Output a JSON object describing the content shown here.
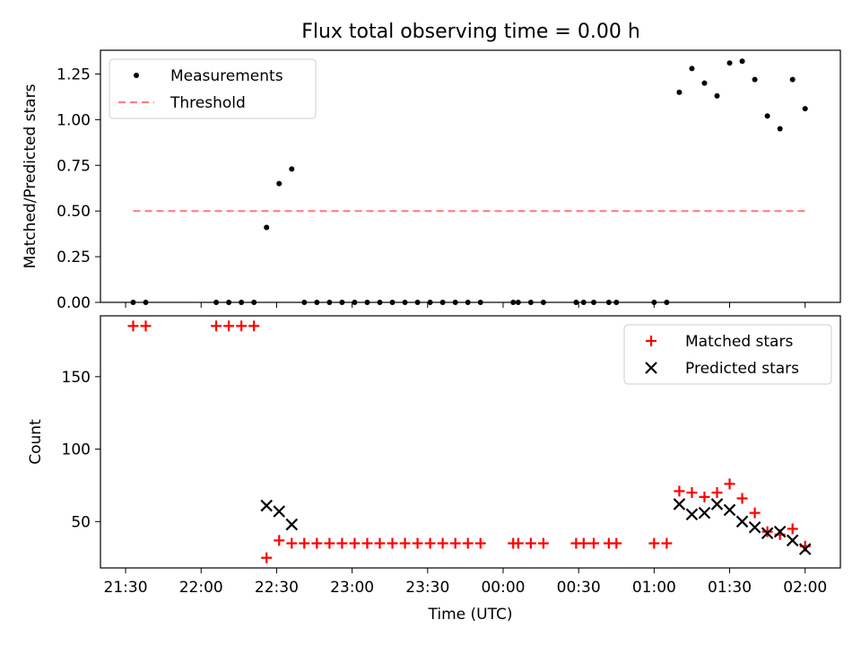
{
  "figure": {
    "title": "Flux total observing time = 0.00 h"
  },
  "chart_data": [
    {
      "type": "scatter",
      "panel": "top",
      "ylabel": "Matched/Predicted stars",
      "xlabel": "",
      "ylim": [
        0,
        1.38
      ],
      "xlim": [
        "21:20",
        "02:14"
      ],
      "grid": false,
      "legend_position": "top-left",
      "y_ticks": [
        "0.00",
        "0.25",
        "0.50",
        "0.75",
        "1.00",
        "1.25"
      ],
      "series": [
        {
          "name": "Measurements",
          "kind": "dot",
          "color": "#000000",
          "points": [
            [
              "21:33",
              0
            ],
            [
              "21:38",
              0
            ],
            [
              "22:06",
              0
            ],
            [
              "22:11",
              0
            ],
            [
              "22:16",
              0
            ],
            [
              "22:21",
              0
            ],
            [
              "22:26",
              0.41
            ],
            [
              "22:31",
              0.65
            ],
            [
              "22:36",
              0.73
            ],
            [
              "22:41",
              0
            ],
            [
              "22:46",
              0
            ],
            [
              "22:51",
              0
            ],
            [
              "22:56",
              0
            ],
            [
              "23:01",
              0
            ],
            [
              "23:06",
              0
            ],
            [
              "23:11",
              0
            ],
            [
              "23:16",
              0
            ],
            [
              "23:21",
              0
            ],
            [
              "23:26",
              0
            ],
            [
              "23:31",
              0
            ],
            [
              "23:36",
              0
            ],
            [
              "23:41",
              0
            ],
            [
              "23:46",
              0
            ],
            [
              "23:51",
              0
            ],
            [
              "00:04",
              0
            ],
            [
              "00:06",
              0
            ],
            [
              "00:11",
              0
            ],
            [
              "00:16",
              0
            ],
            [
              "00:29",
              0
            ],
            [
              "00:32",
              0
            ],
            [
              "00:36",
              0
            ],
            [
              "00:42",
              0
            ],
            [
              "00:45",
              0
            ],
            [
              "01:00",
              0
            ],
            [
              "01:05",
              0
            ],
            [
              "01:10",
              1.15
            ],
            [
              "01:15",
              1.28
            ],
            [
              "01:20",
              1.2
            ],
            [
              "01:25",
              1.13
            ],
            [
              "01:30",
              1.31
            ],
            [
              "01:35",
              1.32
            ],
            [
              "01:40",
              1.22
            ],
            [
              "01:45",
              1.02
            ],
            [
              "01:50",
              0.95
            ],
            [
              "01:55",
              1.22
            ],
            [
              "02:00",
              1.06
            ]
          ]
        },
        {
          "name": "Threshold",
          "kind": "dashed-line",
          "color": "#ff8080",
          "points": [
            [
              "21:33",
              0.5
            ],
            [
              "02:01",
              0.5
            ]
          ]
        }
      ]
    },
    {
      "type": "scatter",
      "panel": "bottom",
      "ylabel": "Count",
      "xlabel": "Time (UTC)",
      "ylim": [
        18,
        192
      ],
      "xlim": [
        "21:20",
        "02:14"
      ],
      "grid": false,
      "legend_position": "top-right",
      "x_ticks": [
        "21:30",
        "22:00",
        "22:30",
        "23:00",
        "23:30",
        "00:00",
        "00:30",
        "01:00",
        "01:30",
        "02:00"
      ],
      "y_ticks": [
        "50",
        "100",
        "150"
      ],
      "series": [
        {
          "name": "Matched stars",
          "kind": "plus",
          "color": "#ff0000",
          "points": [
            [
              "21:33",
              185
            ],
            [
              "21:38",
              185
            ],
            [
              "22:06",
              185
            ],
            [
              "22:11",
              185
            ],
            [
              "22:16",
              185
            ],
            [
              "22:21",
              185
            ],
            [
              "22:26",
              25
            ],
            [
              "22:31",
              37
            ],
            [
              "22:36",
              35
            ],
            [
              "22:41",
              35
            ],
            [
              "22:46",
              35
            ],
            [
              "22:51",
              35
            ],
            [
              "22:56",
              35
            ],
            [
              "23:01",
              35
            ],
            [
              "23:06",
              35
            ],
            [
              "23:11",
              35
            ],
            [
              "23:16",
              35
            ],
            [
              "23:21",
              35
            ],
            [
              "23:26",
              35
            ],
            [
              "23:31",
              35
            ],
            [
              "23:36",
              35
            ],
            [
              "23:41",
              35
            ],
            [
              "23:46",
              35
            ],
            [
              "23:51",
              35
            ],
            [
              "00:04",
              35
            ],
            [
              "00:06",
              35
            ],
            [
              "00:11",
              35
            ],
            [
              "00:16",
              35
            ],
            [
              "00:29",
              35
            ],
            [
              "00:32",
              35
            ],
            [
              "00:36",
              35
            ],
            [
              "00:42",
              35
            ],
            [
              "00:45",
              35
            ],
            [
              "01:00",
              35
            ],
            [
              "01:05",
              35
            ],
            [
              "01:10",
              71
            ],
            [
              "01:15",
              70
            ],
            [
              "01:20",
              67
            ],
            [
              "01:25",
              70
            ],
            [
              "01:30",
              76
            ],
            [
              "01:35",
              66
            ],
            [
              "01:40",
              56
            ],
            [
              "01:45",
              43
            ],
            [
              "01:50",
              41
            ],
            [
              "01:55",
              45
            ],
            [
              "02:00",
              33
            ]
          ]
        },
        {
          "name": "Predicted stars",
          "kind": "cross",
          "color": "#000000",
          "points": [
            [
              "22:26",
              61
            ],
            [
              "22:31",
              57
            ],
            [
              "22:36",
              48
            ],
            [
              "01:10",
              62
            ],
            [
              "01:15",
              55
            ],
            [
              "01:20",
              56
            ],
            [
              "01:25",
              62
            ],
            [
              "01:30",
              58
            ],
            [
              "01:35",
              50
            ],
            [
              "01:40",
              46
            ],
            [
              "01:45",
              42
            ],
            [
              "01:50",
              43
            ],
            [
              "01:55",
              37
            ],
            [
              "02:00",
              31
            ]
          ]
        }
      ]
    }
  ]
}
